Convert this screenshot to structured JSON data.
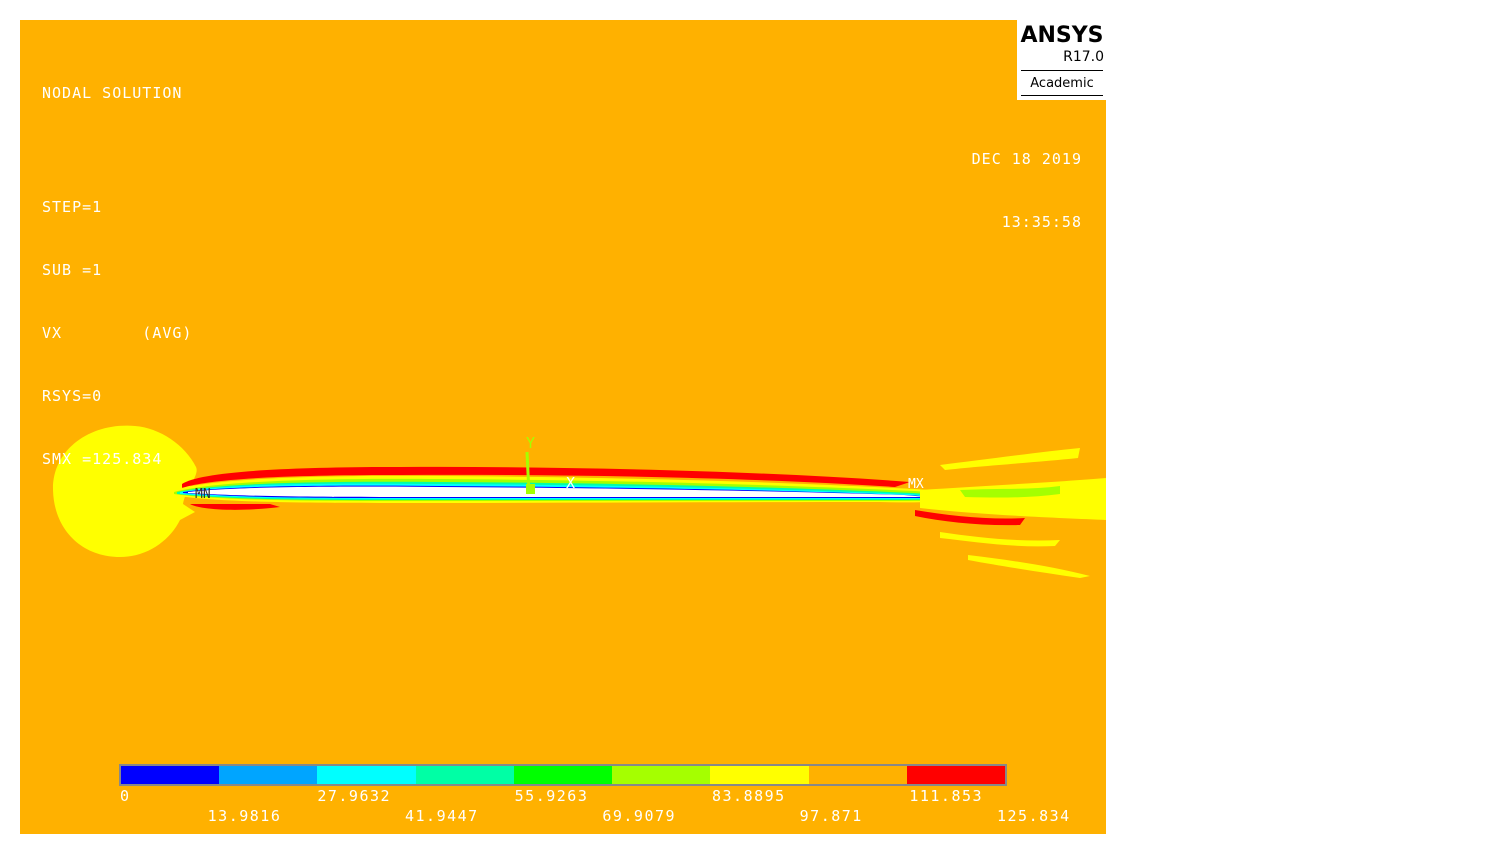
{
  "header": {
    "lines": [
      "NODAL SOLUTION",
      "STEP=1",
      "SUB =1",
      "VX        (AVG)",
      "RSYS=0",
      "SMX =125.834"
    ]
  },
  "datetime": {
    "date": "DEC 18 2019",
    "time": "13:35:58"
  },
  "logo": {
    "brand": "ANSYS",
    "version": "R17.0",
    "edition": "Academic"
  },
  "triad": {
    "y_label": "Y",
    "x_label": "X"
  },
  "markers": {
    "min_label": "MN",
    "max_label": "MX"
  },
  "chart_data": {
    "type": "heatmap",
    "title": "NODAL SOLUTION",
    "quantity": "VX",
    "colorbar": {
      "top_labels": [
        "0",
        "27.9632",
        "55.9263",
        "83.8895",
        "111.853"
      ],
      "bottom_labels": [
        "13.9816",
        "41.9447",
        "69.9079",
        "97.871",
        "125.834"
      ],
      "boundaries": [
        0,
        13.9816,
        27.9632,
        41.9447,
        55.9263,
        69.9079,
        83.8895,
        97.871,
        111.853,
        125.834
      ],
      "colors": [
        "#0000FF",
        "#00A5FF",
        "#00FFFF",
        "#00FFA5",
        "#00FF00",
        "#A5FF00",
        "#FFFF00",
        "#FFB100",
        "#FF0000"
      ]
    }
  }
}
